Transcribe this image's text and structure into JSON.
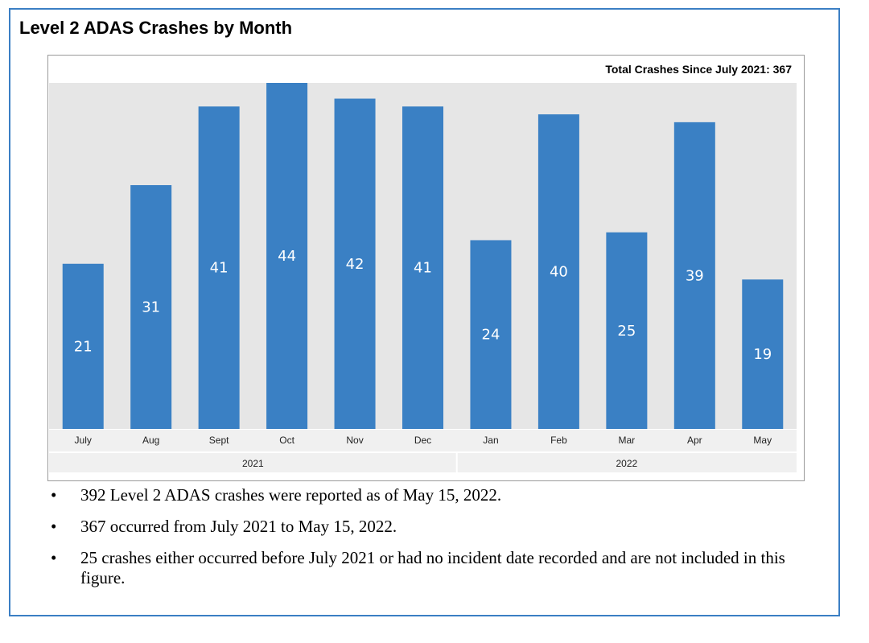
{
  "title": "Level 2 ADAS Crashes by Month",
  "chart_data": {
    "type": "bar",
    "annotation": "Total Crashes Since July 2021: 367",
    "categories": [
      "July",
      "Aug",
      "Sept",
      "Oct",
      "Nov",
      "Dec",
      "Jan",
      "Feb",
      "Mar",
      "Apr",
      "May"
    ],
    "values": [
      21,
      31,
      41,
      44,
      42,
      41,
      24,
      40,
      25,
      39,
      19
    ],
    "year_groups": [
      {
        "label": "2021",
        "from": 0,
        "to": 5
      },
      {
        "label": "2022",
        "from": 6,
        "to": 10
      }
    ],
    "ylim": [
      0,
      44
    ],
    "bar_color": "#3a80c4",
    "plot_background": "#e6e6e6",
    "grid": false
  },
  "notes": [
    "392 Level 2 ADAS crashes were reported as of May 15, 2022.",
    "367 occurred from July 2021 to May 15, 2022.",
    "25 crashes either occurred before July 2021 or had no incident date recorded and are not included in this figure."
  ],
  "bullet": "•"
}
